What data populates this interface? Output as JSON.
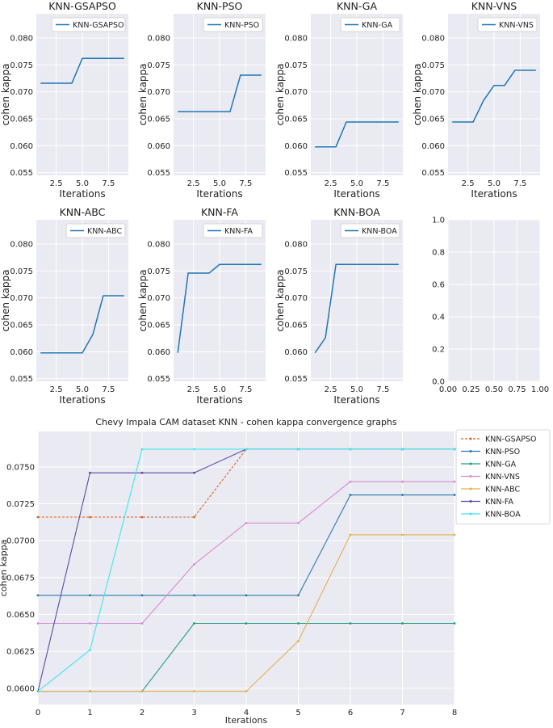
{
  "chart_data": [
    {
      "type": "line",
      "title": "KNN-GSAPSO",
      "xlabel": "Iterations",
      "ylabel": "cohen kappa",
      "ylim": [
        0.0545,
        0.0845
      ],
      "xlim": [
        0.6,
        9.4
      ],
      "xticks": [
        2.5,
        5.0,
        7.5
      ],
      "xtick_labels": [
        "2.5",
        "5.0",
        "7.5"
      ],
      "yticks": [
        0.055,
        0.06,
        0.065,
        0.07,
        0.075,
        0.08
      ],
      "ytick_labels": [
        "0.055",
        "0.060",
        "0.065",
        "0.070",
        "0.075",
        "0.080"
      ],
      "legend": "top-right",
      "series": [
        {
          "name": "KNN-GSAPSO",
          "x": [
            1,
            2,
            3,
            4,
            5,
            6,
            7,
            8,
            9
          ],
          "values": [
            0.0716,
            0.0716,
            0.0716,
            0.0716,
            0.0762,
            0.0762,
            0.0762,
            0.0762,
            0.0762
          ]
        }
      ]
    },
    {
      "type": "line",
      "title": "KNN-PSO",
      "xlabel": "Iterations",
      "ylabel": "cohen kappa",
      "ylim": [
        0.0545,
        0.0845
      ],
      "xlim": [
        0.6,
        9.4
      ],
      "xticks": [
        2.5,
        5.0,
        7.5
      ],
      "xtick_labels": [
        "2.5",
        "5.0",
        "7.5"
      ],
      "yticks": [
        0.055,
        0.06,
        0.065,
        0.07,
        0.075,
        0.08
      ],
      "ytick_labels": [
        "0.055",
        "0.060",
        "0.065",
        "0.070",
        "0.075",
        "0.080"
      ],
      "legend": "top-right",
      "series": [
        {
          "name": "KNN-PSO",
          "x": [
            1,
            2,
            3,
            4,
            5,
            6,
            7,
            8,
            9
          ],
          "values": [
            0.0663,
            0.0663,
            0.0663,
            0.0663,
            0.0663,
            0.0663,
            0.0731,
            0.0731,
            0.0731
          ]
        }
      ]
    },
    {
      "type": "line",
      "title": "KNN-GA",
      "xlabel": "Iterations",
      "ylabel": "cohen kappa",
      "ylim": [
        0.0545,
        0.0845
      ],
      "xlim": [
        0.6,
        9.4
      ],
      "xticks": [
        2.5,
        5.0,
        7.5
      ],
      "xtick_labels": [
        "2.5",
        "5.0",
        "7.5"
      ],
      "yticks": [
        0.055,
        0.06,
        0.065,
        0.07,
        0.075,
        0.08
      ],
      "ytick_labels": [
        "0.055",
        "0.060",
        "0.065",
        "0.070",
        "0.075",
        "0.080"
      ],
      "legend": "top-right",
      "series": [
        {
          "name": "KNN-GA",
          "x": [
            1,
            2,
            3,
            4,
            5,
            6,
            7,
            8,
            9
          ],
          "values": [
            0.0598,
            0.0598,
            0.0598,
            0.0644,
            0.0644,
            0.0644,
            0.0644,
            0.0644,
            0.0644
          ]
        }
      ]
    },
    {
      "type": "line",
      "title": "KNN-VNS",
      "xlabel": "Iterations",
      "ylabel": "cohen kappa",
      "ylim": [
        0.0545,
        0.0845
      ],
      "xlim": [
        0.6,
        9.4
      ],
      "xticks": [
        2.5,
        5.0,
        7.5
      ],
      "xtick_labels": [
        "2.5",
        "5.0",
        "7.5"
      ],
      "yticks": [
        0.055,
        0.06,
        0.065,
        0.07,
        0.075,
        0.08
      ],
      "ytick_labels": [
        "0.055",
        "0.060",
        "0.065",
        "0.070",
        "0.075",
        "0.080"
      ],
      "legend": "top-right",
      "series": [
        {
          "name": "KNN-VNS",
          "x": [
            1,
            2,
            3,
            4,
            5,
            6,
            7,
            8,
            9
          ],
          "values": [
            0.0644,
            0.0644,
            0.0644,
            0.0684,
            0.0712,
            0.0712,
            0.074,
            0.074,
            0.074
          ]
        }
      ]
    },
    {
      "type": "line",
      "title": "KNN-ABC",
      "xlabel": "Iterations",
      "ylabel": "cohen kappa",
      "ylim": [
        0.0545,
        0.0845
      ],
      "xlim": [
        0.6,
        9.4
      ],
      "xticks": [
        2.5,
        5.0,
        7.5
      ],
      "xtick_labels": [
        "2.5",
        "5.0",
        "7.5"
      ],
      "yticks": [
        0.055,
        0.06,
        0.065,
        0.07,
        0.075,
        0.08
      ],
      "ytick_labels": [
        "0.055",
        "0.060",
        "0.065",
        "0.070",
        "0.075",
        "0.080"
      ],
      "legend": "top-right",
      "series": [
        {
          "name": "KNN-ABC",
          "x": [
            1,
            2,
            3,
            4,
            5,
            6,
            7,
            8,
            9
          ],
          "values": [
            0.0598,
            0.0598,
            0.0598,
            0.0598,
            0.0598,
            0.0632,
            0.0704,
            0.0704,
            0.0704
          ]
        }
      ]
    },
    {
      "type": "line",
      "title": "KNN-FA",
      "xlabel": "Iterations",
      "ylabel": "cohen kappa",
      "ylim": [
        0.0545,
        0.0845
      ],
      "xlim": [
        0.6,
        9.4
      ],
      "xticks": [
        2.5,
        5.0,
        7.5
      ],
      "xtick_labels": [
        "2.5",
        "5.0",
        "7.5"
      ],
      "yticks": [
        0.055,
        0.06,
        0.065,
        0.07,
        0.075,
        0.08
      ],
      "ytick_labels": [
        "0.055",
        "0.060",
        "0.065",
        "0.070",
        "0.075",
        "0.080"
      ],
      "legend": "top-right",
      "series": [
        {
          "name": "KNN-FA",
          "x": [
            1,
            2,
            3,
            4,
            5,
            6,
            7,
            8,
            9
          ],
          "values": [
            0.0598,
            0.0746,
            0.0746,
            0.0746,
            0.0762,
            0.0762,
            0.0762,
            0.0762,
            0.0762
          ]
        }
      ]
    },
    {
      "type": "line",
      "title": "KNN-BOA",
      "xlabel": "Iterations",
      "ylabel": "cohen kappa",
      "ylim": [
        0.0545,
        0.0845
      ],
      "xlim": [
        0.6,
        9.4
      ],
      "xticks": [
        2.5,
        5.0,
        7.5
      ],
      "xtick_labels": [
        "2.5",
        "5.0",
        "7.5"
      ],
      "yticks": [
        0.055,
        0.06,
        0.065,
        0.07,
        0.075,
        0.08
      ],
      "ytick_labels": [
        "0.055",
        "0.060",
        "0.065",
        "0.070",
        "0.075",
        "0.080"
      ],
      "legend": "top-right",
      "series": [
        {
          "name": "KNN-BOA",
          "x": [
            1,
            2,
            3,
            4,
            5,
            6,
            7,
            8,
            9
          ],
          "values": [
            0.0598,
            0.0626,
            0.0762,
            0.0762,
            0.0762,
            0.0762,
            0.0762,
            0.0762,
            0.0762
          ]
        }
      ]
    },
    {
      "type": "line",
      "title": "",
      "xlabel": "",
      "ylabel": "",
      "ylim": [
        0,
        1
      ],
      "xlim": [
        0,
        1
      ],
      "xticks": [
        0,
        0.25,
        0.5,
        0.75,
        1.0
      ],
      "xtick_labels": [
        "0.00",
        "0.25",
        "0.50",
        "0.75",
        "1.00"
      ],
      "yticks": [
        0,
        0.2,
        0.4,
        0.6,
        0.8,
        1.0
      ],
      "ytick_labels": [
        "0.0",
        "0.2",
        "0.4",
        "0.6",
        "0.8",
        "1.0"
      ],
      "legend": "none",
      "series": []
    },
    {
      "type": "line",
      "title": "Chevy Impala CAM dataset KNN -  cohen kappa convergence graphs",
      "xlabel": "Iterations",
      "ylabel": "cohen kappa",
      "ylim": [
        0.0589,
        0.0774
      ],
      "xlim": [
        0,
        8
      ],
      "xticks": [
        0,
        1,
        2,
        3,
        4,
        5,
        6,
        7,
        8
      ],
      "xtick_labels": [
        "0",
        "1",
        "2",
        "3",
        "4",
        "5",
        "6",
        "7",
        "8"
      ],
      "yticks": [
        0.06,
        0.0625,
        0.065,
        0.0675,
        0.07,
        0.0725,
        0.075
      ],
      "ytick_labels": [
        "0.0600",
        "0.0625",
        "0.0650",
        "0.0675",
        "0.0700",
        "0.0725",
        "0.0750"
      ],
      "legend": "outside-right",
      "series": [
        {
          "name": "KNN-GSAPSO",
          "color": "#d9621f",
          "dashed": true,
          "x": [
            0,
            1,
            2,
            3,
            4,
            5,
            6,
            7,
            8
          ],
          "values": [
            0.0716,
            0.0716,
            0.0716,
            0.0716,
            0.0762,
            0.0762,
            0.0762,
            0.0762,
            0.0762
          ]
        },
        {
          "name": "KNN-PSO",
          "color": "#2a79b0",
          "dashed": false,
          "x": [
            0,
            1,
            2,
            3,
            4,
            5,
            6,
            7,
            8
          ],
          "values": [
            0.0663,
            0.0663,
            0.0663,
            0.0663,
            0.0663,
            0.0663,
            0.0731,
            0.0731,
            0.0731
          ]
        },
        {
          "name": "KNN-GA",
          "color": "#1f9e7e",
          "dashed": false,
          "x": [
            0,
            1,
            2,
            3,
            4,
            5,
            6,
            7,
            8
          ],
          "values": [
            0.0598,
            0.0598,
            0.0598,
            0.0644,
            0.0644,
            0.0644,
            0.0644,
            0.0644,
            0.0644
          ]
        },
        {
          "name": "KNN-VNS",
          "color": "#d68ad4",
          "dashed": false,
          "x": [
            0,
            1,
            2,
            3,
            4,
            5,
            6,
            7,
            8
          ],
          "values": [
            0.0644,
            0.0644,
            0.0644,
            0.0684,
            0.0712,
            0.0712,
            0.074,
            0.074,
            0.074
          ]
        },
        {
          "name": "KNN-ABC",
          "color": "#e3b14f",
          "dashed": false,
          "x": [
            0,
            1,
            2,
            3,
            4,
            5,
            6,
            7,
            8
          ],
          "values": [
            0.0598,
            0.0598,
            0.0598,
            0.0598,
            0.0598,
            0.0632,
            0.0704,
            0.0704,
            0.0704
          ]
        },
        {
          "name": "KNN-FA",
          "color": "#5b4aa6",
          "dashed": false,
          "x": [
            0,
            1,
            2,
            3,
            4,
            5,
            6,
            7,
            8
          ],
          "values": [
            0.0598,
            0.0746,
            0.0746,
            0.0746,
            0.0762,
            0.0762,
            0.0762,
            0.0762,
            0.0762
          ]
        },
        {
          "name": "KNN-BOA",
          "color": "#3ee6ef",
          "dashed": false,
          "x": [
            0,
            1,
            2,
            3,
            4,
            5,
            6,
            7,
            8
          ],
          "values": [
            0.0598,
            0.0626,
            0.0762,
            0.0762,
            0.0762,
            0.0762,
            0.0762,
            0.0762,
            0.0762
          ]
        }
      ]
    }
  ],
  "colors": {
    "subplot_line": "#1f77b4",
    "grid": "#ffffff",
    "panel_bg": "#eaeaf2",
    "text": "#222222"
  }
}
